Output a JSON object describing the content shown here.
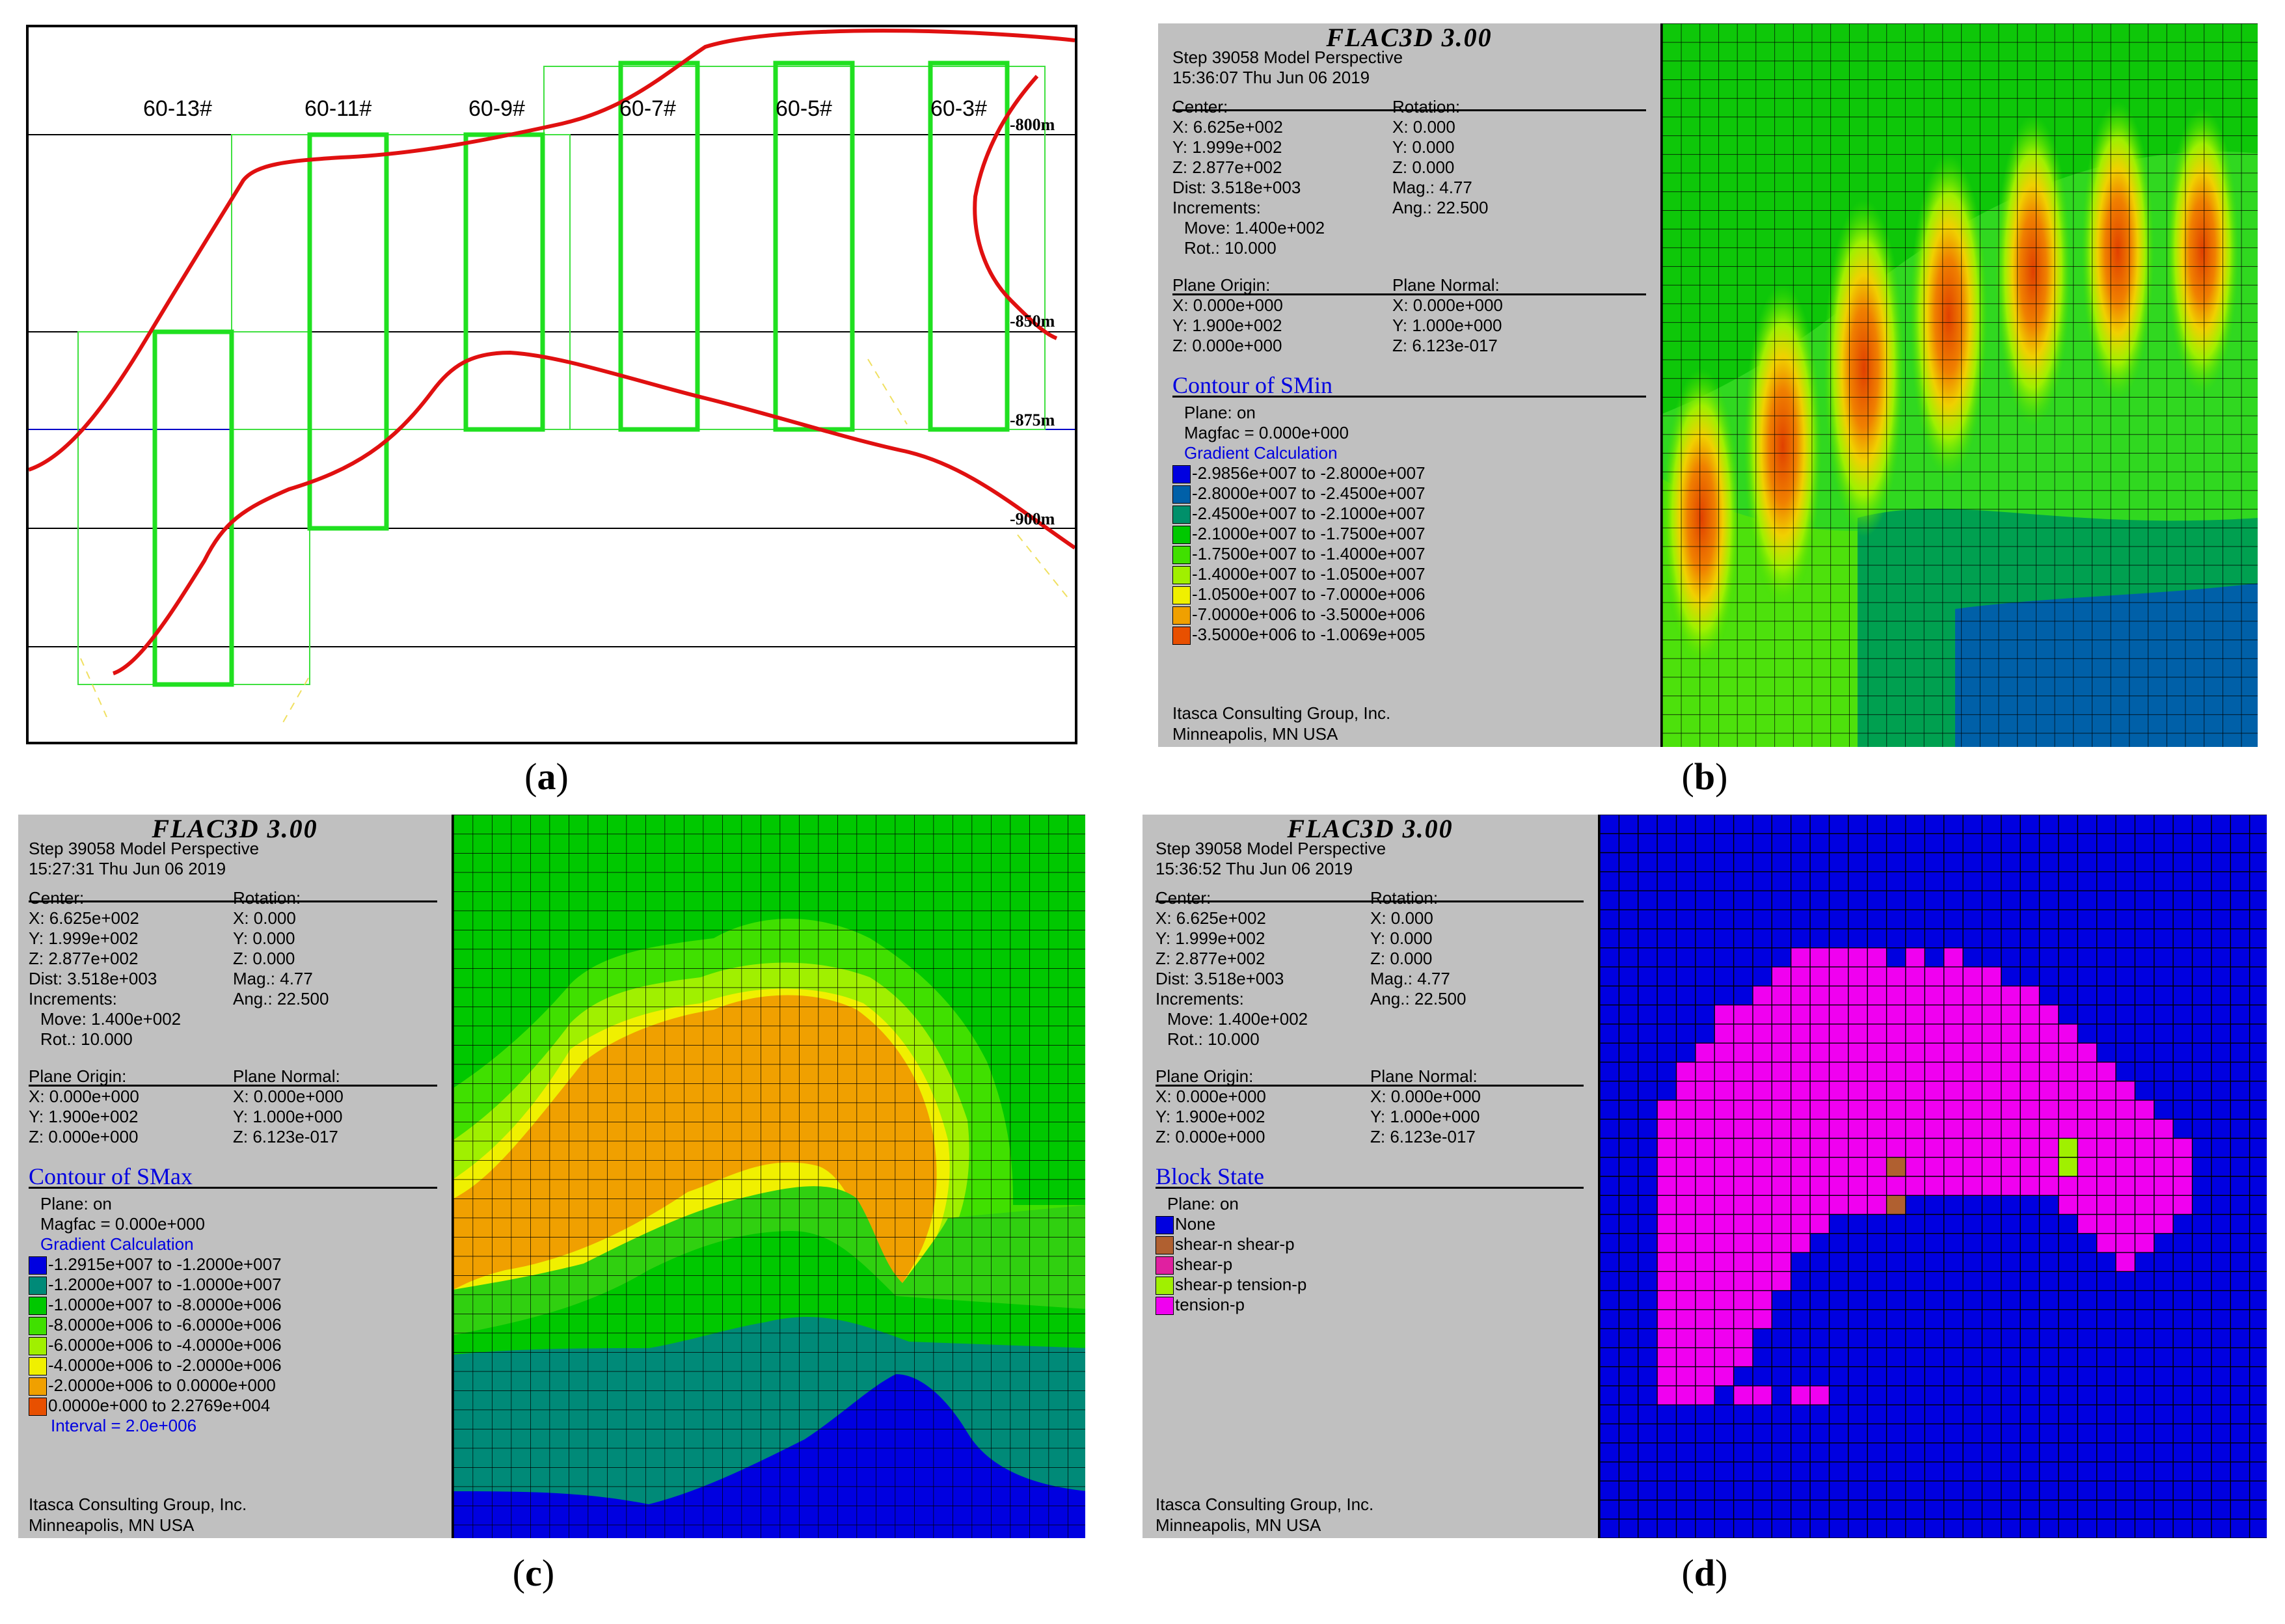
{
  "panel_a": {
    "stope_labels": [
      "60-13#",
      "60-11#",
      "60-9#",
      "60-7#",
      "60-5#",
      "60-3#"
    ],
    "level_labels": [
      "-800m",
      "-850m",
      "-875m",
      "-900m"
    ],
    "caption": "a"
  },
  "panel_b": {
    "title": "FLAC3D 3.00",
    "step": "Step 39058  Model Perspective",
    "time": "15:36:07 Thu Jun 06 2019",
    "center": {
      "label": "Center:",
      "x": "X: 6.625e+002",
      "y": "Y: 1.999e+002",
      "z": "Z: 2.877e+002"
    },
    "rotation": {
      "label": "Rotation:",
      "x": "X:   0.000",
      "y": "Y:   0.000",
      "z": "Z:   0.000"
    },
    "dist": "Dist: 3.518e+003",
    "mag": "Mag.:      4.77",
    "increments": "Increments:",
    "ang": "Ang.:  22.500",
    "move": "Move: 1.400e+002",
    "rot": "Rot.:  10.000",
    "plane_origin": {
      "label": "Plane Origin:",
      "x": "X: 0.000e+000",
      "y": "Y: 1.900e+002",
      "z": "Z: 0.000e+000"
    },
    "plane_normal": {
      "label": "Plane Normal:",
      "x": "X: 0.000e+000",
      "y": "Y: 1.000e+000",
      "z": "Z: 6.123e-017"
    },
    "contour_title": "Contour of SMin",
    "plane_on": "Plane: on",
    "magfac": "Magfac =  0.000e+000",
    "gradient": "Gradient Calculation",
    "legend": [
      {
        "color": "#0000e0",
        "text": "-2.9856e+007 to -2.8000e+007"
      },
      {
        "color": "#0060a8",
        "text": "-2.8000e+007 to -2.4500e+007"
      },
      {
        "color": "#00906a",
        "text": "-2.4500e+007 to -2.1000e+007"
      },
      {
        "color": "#00c800",
        "text": "-2.1000e+007 to -1.7500e+007"
      },
      {
        "color": "#40e000",
        "text": "-1.7500e+007 to -1.4000e+007"
      },
      {
        "color": "#a0f000",
        "text": "-1.4000e+007 to -1.0500e+007"
      },
      {
        "color": "#f0f000",
        "text": "-1.0500e+007 to -7.0000e+006"
      },
      {
        "color": "#f0a000",
        "text": "-7.0000e+006 to -3.5000e+006"
      },
      {
        "color": "#e85000",
        "text": "-3.5000e+006 to -1.0069e+005"
      }
    ],
    "company": "Itasca Consulting Group, Inc.",
    "city": "Minneapolis, MN  USA",
    "caption": "b"
  },
  "panel_c": {
    "title": "FLAC3D 3.00",
    "step": "Step 39058  Model Perspective",
    "time": "15:27:31 Thu Jun 06 2019",
    "center": {
      "label": "Center:",
      "x": "X: 6.625e+002",
      "y": "Y: 1.999e+002",
      "z": "Z: 2.877e+002"
    },
    "rotation": {
      "label": "Rotation:",
      "x": "X:   0.000",
      "y": "Y:   0.000",
      "z": "Z:   0.000"
    },
    "dist": "Dist: 3.518e+003",
    "mag": "Mag.:      4.77",
    "increments": "Increments:",
    "ang": "Ang.:  22.500",
    "move": "Move: 1.400e+002",
    "rot": "Rot.:  10.000",
    "plane_origin": {
      "label": "Plane Origin:",
      "x": "X: 0.000e+000",
      "y": "Y: 1.900e+002",
      "z": "Z: 0.000e+000"
    },
    "plane_normal": {
      "label": "Plane Normal:",
      "x": "X: 0.000e+000",
      "y": "Y: 1.000e+000",
      "z": "Z: 6.123e-017"
    },
    "contour_title": "Contour of SMax",
    "plane_on": "Plane: on",
    "magfac": "Magfac =  0.000e+000",
    "gradient": "Gradient Calculation",
    "legend": [
      {
        "color": "#0000e0",
        "text": "-1.2915e+007 to -1.2000e+007"
      },
      {
        "color": "#008a78",
        "text": "-1.2000e+007 to -1.0000e+007"
      },
      {
        "color": "#00c800",
        "text": "-1.0000e+007 to -8.0000e+006"
      },
      {
        "color": "#40e000",
        "text": "-8.0000e+006 to -6.0000e+006"
      },
      {
        "color": "#a0f000",
        "text": "-6.0000e+006 to -4.0000e+006"
      },
      {
        "color": "#f0f000",
        "text": "-4.0000e+006 to -2.0000e+006"
      },
      {
        "color": "#f0a000",
        "text": "-2.0000e+006 to  0.0000e+000"
      },
      {
        "color": "#e85000",
        "text": "0.0000e+000 to  2.2769e+004"
      }
    ],
    "interval": "Interval =  2.0e+006",
    "company": "Itasca Consulting Group, Inc.",
    "city": "Minneapolis, MN  USA",
    "caption": "c"
  },
  "panel_d": {
    "title": "FLAC3D 3.00",
    "step": "Step 39058  Model Perspective",
    "time": "15:36:52 Thu Jun 06 2019",
    "center": {
      "label": "Center:",
      "x": "X: 6.625e+002",
      "y": "Y: 1.999e+002",
      "z": "Z: 2.877e+002"
    },
    "rotation": {
      "label": "Rotation:",
      "x": "X:   0.000",
      "y": "Y:   0.000",
      "z": "Z:   0.000"
    },
    "dist": "Dist: 3.518e+003",
    "mag": "Mag.:      4.77",
    "increments": "Increments:",
    "ang": "Ang.:  22.500",
    "move": "Move: 1.400e+002",
    "rot": "Rot.:  10.000",
    "plane_origin": {
      "label": "Plane Origin:",
      "x": "X: 0.000e+000",
      "y": "Y: 1.900e+002",
      "z": "Z: 0.000e+000"
    },
    "plane_normal": {
      "label": "Plane Normal:",
      "x": "X: 0.000e+000",
      "y": "Y: 1.000e+000",
      "z": "Z: 6.123e-017"
    },
    "contour_title": "Block State",
    "plane_on": "Plane: on",
    "legend": [
      {
        "color": "#0000e0",
        "text": "None"
      },
      {
        "color": "#b06030",
        "text": "shear-n shear-p"
      },
      {
        "color": "#e020a0",
        "text": "shear-p"
      },
      {
        "color": "#a0f000",
        "text": "shear-p tension-p"
      },
      {
        "color": "#f000f0",
        "text": "tension-p"
      }
    ],
    "company": "Itasca Consulting Group, Inc.",
    "city": "Minneapolis, MN  USA",
    "caption": "d"
  }
}
